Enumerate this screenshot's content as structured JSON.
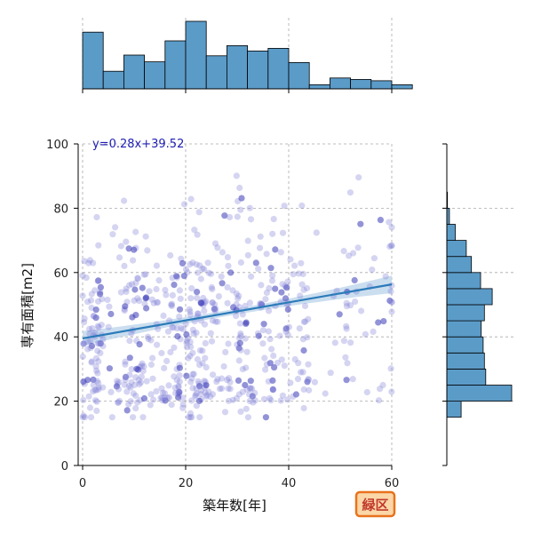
{
  "chart_data": {
    "type": "scatter",
    "title": "",
    "xlabel": "築年数[年]",
    "ylabel": "専有面積[m2]",
    "xlim": [
      0,
      60
    ],
    "ylim": [
      0,
      100
    ],
    "x_ticks": [
      0,
      20,
      40,
      60
    ],
    "y_ticks": [
      0,
      20,
      40,
      60,
      80,
      100
    ],
    "grid": true,
    "regression": {
      "slope": 0.28,
      "intercept": 39.52,
      "label": "y=0.28x+39.52"
    },
    "badge": "緑区",
    "marginal_x_hist": {
      "bin_width": 4,
      "bin_start": 0,
      "relative_counts": [
        0.84,
        0.26,
        0.5,
        0.4,
        0.71,
        1.0,
        0.49,
        0.64,
        0.56,
        0.6,
        0.39,
        0.06,
        0.16,
        0.14,
        0.12,
        0.06
      ]
    },
    "marginal_y_hist": {
      "bin_width": 5,
      "bin_start": 15,
      "relative_counts": [
        0.22,
        1.0,
        0.6,
        0.58,
        0.56,
        0.53,
        0.58,
        0.7,
        0.52,
        0.38,
        0.3,
        0.13,
        0.04,
        0.01,
        0.0,
        0.0,
        0.0
      ]
    },
    "point_color": "#7b7bd8",
    "hist_color": "#5b9bc8",
    "line_color": "#2b7bb9",
    "ci_color": "#b9d3ea",
    "badge_fill": "#fbd7a8",
    "badge_stroke": "#e8721c"
  }
}
